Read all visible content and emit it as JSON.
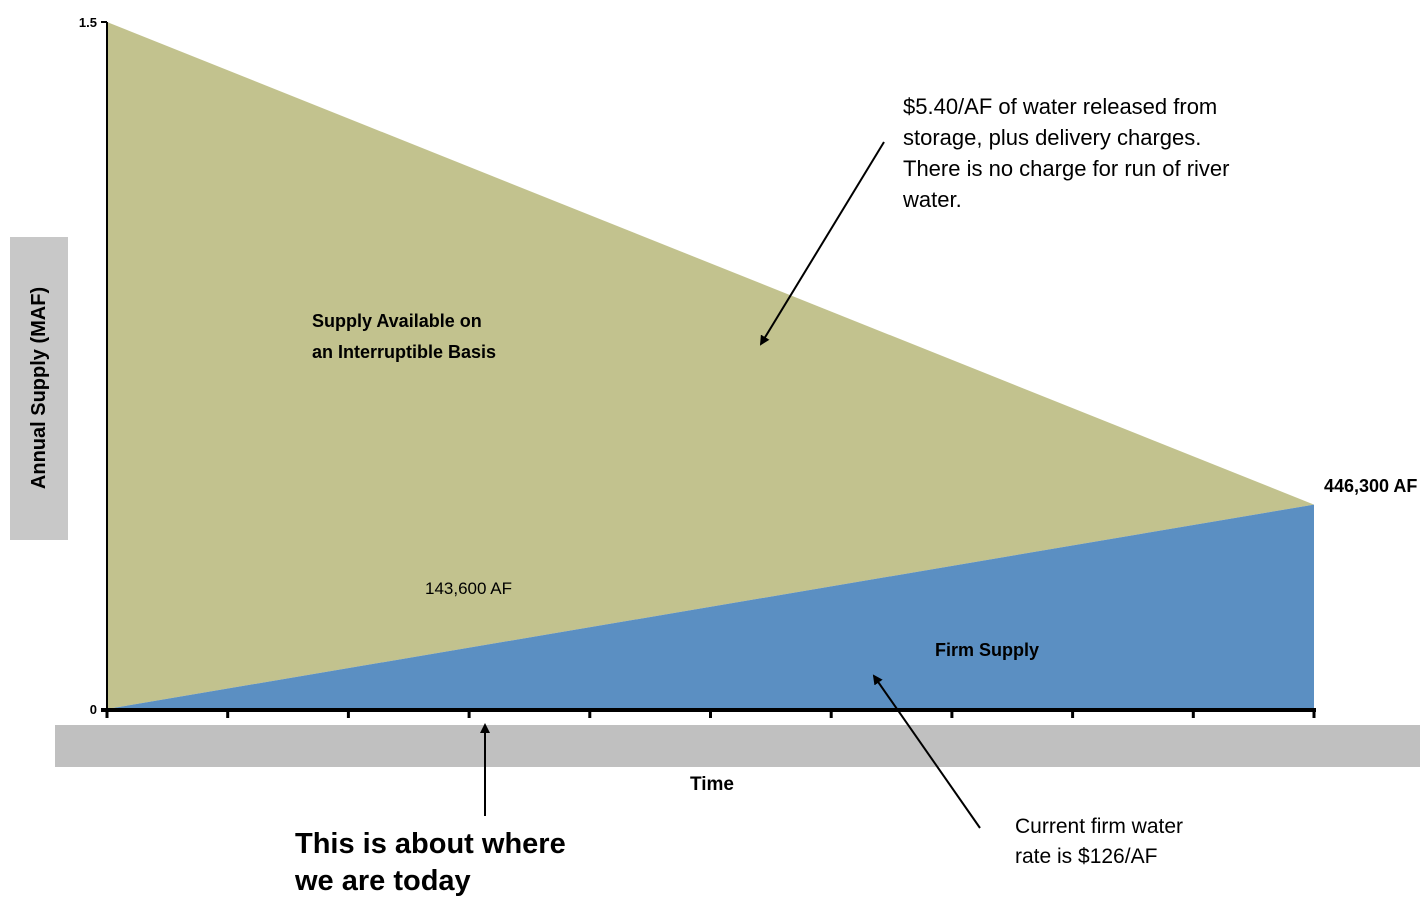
{
  "chart_data": {
    "type": "area",
    "xlabel": "Time",
    "ylabel": "Annual Supply (MAF)",
    "y_tick_labels": [
      "0",
      "1.5"
    ],
    "ylim": [
      0,
      1.5
    ],
    "x_ticks_count": 11,
    "series": [
      {
        "name": "Firm Supply",
        "x": [
          0,
          10
        ],
        "values": [
          0,
          0.4463
        ],
        "color": "#5b8fc2"
      },
      {
        "name": "Supply Available on an Interruptible Basis",
        "x": [
          0,
          10
        ],
        "values": [
          1.5,
          0.4463
        ],
        "color": "#c2c28e"
      }
    ],
    "region_labels": {
      "interruptible_line1": "Supply Available on",
      "interruptible_line2": "an Interruptible Basis",
      "firm": "Firm Supply"
    },
    "point_labels": {
      "mid": "143,600 AF",
      "end": "446,300 AF"
    },
    "annotations": {
      "storage_price": [
        "$5.40/AF of water released from",
        "storage, plus delivery charges.",
        "There is no charge for run of river",
        "water."
      ],
      "firm_rate": [
        "Current firm water",
        "rate is $126/AF"
      ],
      "today": [
        "This is about where",
        "we are today"
      ]
    }
  }
}
